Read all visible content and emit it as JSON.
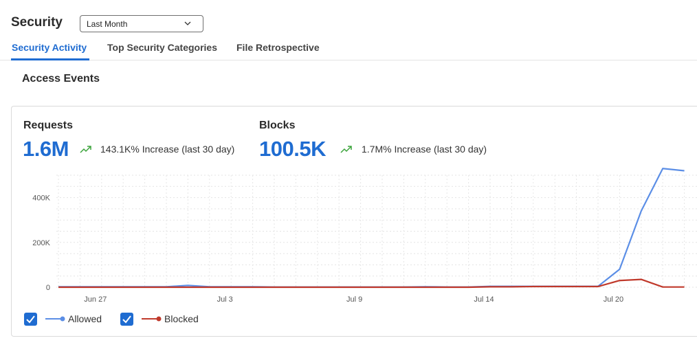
{
  "header": {
    "title": "Security",
    "range_select": {
      "value": "Last Month"
    }
  },
  "tabs": [
    {
      "label": "Security Activity",
      "active": true
    },
    {
      "label": "Top Security Categories",
      "active": false
    },
    {
      "label": "File Retrospective",
      "active": false
    }
  ],
  "section": {
    "title": "Access Events"
  },
  "metrics": {
    "requests": {
      "label": "Requests",
      "value": "1.6M",
      "trend": "143.1K% Increase (last 30 day)"
    },
    "blocks": {
      "label": "Blocks",
      "value": "100.5K",
      "trend": "1.7M% Increase (last 30 day)"
    }
  },
  "colors": {
    "accent": "#1f6cd1",
    "allowed": "#5b8ee6",
    "blocked": "#c0392b",
    "trend_up": "#3aa33a"
  },
  "legend": {
    "allowed": {
      "label": "Allowed",
      "checked": true
    },
    "blocked": {
      "label": "Blocked",
      "checked": true
    }
  },
  "chart_data": {
    "type": "line",
    "x_tick_labels": [
      "Jun 27",
      "Jul 3",
      "Jul 9",
      "Jul 14",
      "Jul 20"
    ],
    "y_tick_labels": [
      "0",
      "200K",
      "400K"
    ],
    "ylim": [
      0,
      500000
    ],
    "grid": true,
    "legend_position": "bottom-left",
    "x": [
      "Jun 25",
      "Jun 26",
      "Jun 27",
      "Jun 28",
      "Jun 29",
      "Jun 30",
      "Jul 1",
      "Jul 2",
      "Jul 3",
      "Jul 4",
      "Jul 5",
      "Jul 6",
      "Jul 7",
      "Jul 8",
      "Jul 9",
      "Jul 10",
      "Jul 11",
      "Jul 12",
      "Jul 13",
      "Jul 14",
      "Jul 15",
      "Jul 16",
      "Jul 17",
      "Jul 18",
      "Jul 19",
      "Jul 20",
      "Jul 21",
      "Jul 22",
      "Jul 23",
      "Jul 24"
    ],
    "series": [
      {
        "name": "Allowed",
        "values": [
          2000,
          2000,
          2000,
          2000,
          2000,
          2000,
          8000,
          2000,
          2000,
          2000,
          1000,
          1000,
          1000,
          1000,
          1000,
          1000,
          1000,
          2000,
          1000,
          1000,
          4000,
          4000,
          4000,
          4000,
          4000,
          4000,
          80000,
          340000,
          530000,
          520000
        ]
      },
      {
        "name": "Blocked",
        "values": [
          0,
          0,
          0,
          0,
          0,
          0,
          0,
          0,
          0,
          0,
          0,
          0,
          0,
          0,
          0,
          0,
          0,
          0,
          0,
          0,
          2000,
          2000,
          3000,
          3000,
          3000,
          3000,
          30000,
          35000,
          1000,
          1000
        ]
      }
    ]
  }
}
